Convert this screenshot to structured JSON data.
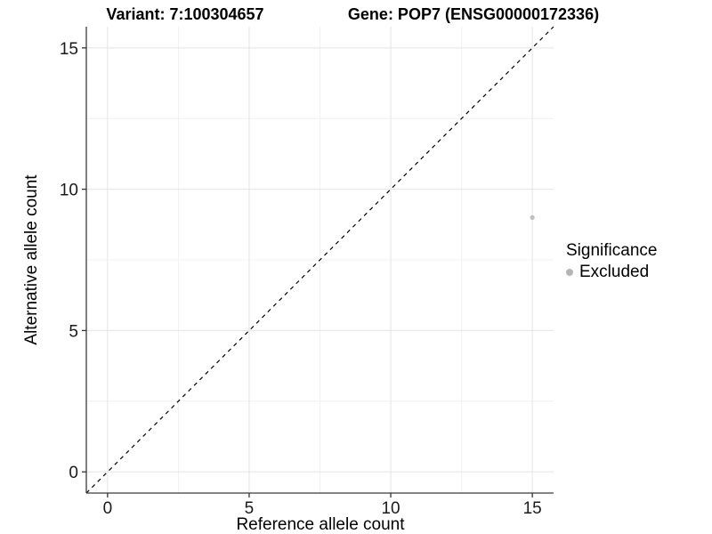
{
  "titles": {
    "variant": "Variant: 7:100304657",
    "gene": "Gene: POP7 (ENSG00000172336)"
  },
  "chart_data": {
    "type": "scatter",
    "title_left": "Variant: 7:100304657",
    "title_right": "Gene: POP7 (ENSG00000172336)",
    "xlabel": "Reference allele count",
    "ylabel": "Alternative allele count",
    "xlim": [
      -0.75,
      15.75
    ],
    "ylim": [
      -0.75,
      15.75
    ],
    "x_ticks": [
      0,
      5,
      10,
      15
    ],
    "y_ticks": [
      0,
      5,
      10,
      15
    ],
    "x_minor_ticks": [
      2.5,
      7.5,
      12.5
    ],
    "y_minor_ticks": [
      2.5,
      7.5,
      12.5
    ],
    "grid": true,
    "points": [
      {
        "x": 15,
        "y": 9,
        "series": "Excluded",
        "color": "#bebebe"
      }
    ],
    "reference_line": {
      "type": "identity",
      "slope": 1,
      "intercept": 0,
      "style": "dashed",
      "color": "#000000"
    },
    "legend": {
      "title": "Significance",
      "position": "right",
      "items": [
        {
          "label": "Excluded",
          "color": "#b5b5b5"
        }
      ]
    }
  }
}
